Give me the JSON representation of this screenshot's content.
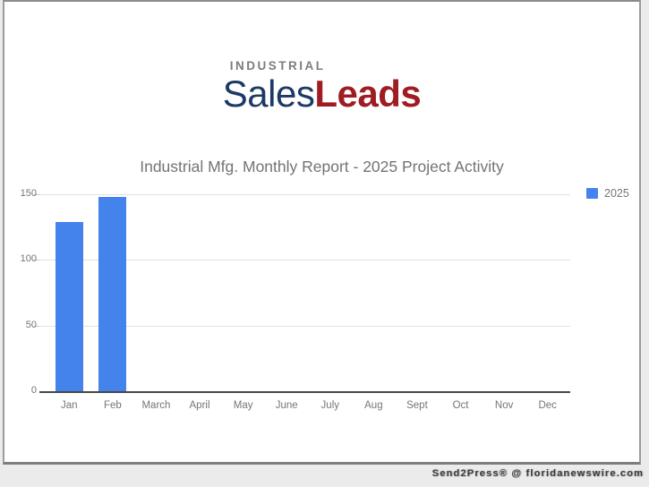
{
  "logo": {
    "industrial": "INDUSTRIAL",
    "sales": "Sales",
    "leads": "Leads",
    "colors": {
      "industrial": "#7c7c7c",
      "sales": "#1c3a66",
      "leads": "#9e1c22"
    }
  },
  "watermark": {
    "text": "Send2Press® @ floridanewswire.com"
  },
  "chart_data": {
    "type": "bar",
    "title": "Industrial Mfg. Monthly Report - 2025 Project Activity",
    "categories": [
      "Jan",
      "Feb",
      "March",
      "April",
      "May",
      "June",
      "July",
      "Aug",
      "Sept",
      "Oct",
      "Nov",
      "Dec"
    ],
    "series": [
      {
        "name": "2025",
        "values": [
          129,
          148,
          0,
          0,
          0,
          0,
          0,
          0,
          0,
          0,
          0,
          0
        ]
      }
    ],
    "xlabel": "",
    "ylabel": "",
    "ylim": [
      0,
      150
    ],
    "yticks": [
      0,
      50,
      100,
      150
    ],
    "grid": true,
    "legend_position": "right",
    "colors": {
      "bar": "#4583ec",
      "title": "#737373",
      "tick_label": "#757575",
      "gridline": "#e2e2e2",
      "baseline": "#474747"
    }
  }
}
